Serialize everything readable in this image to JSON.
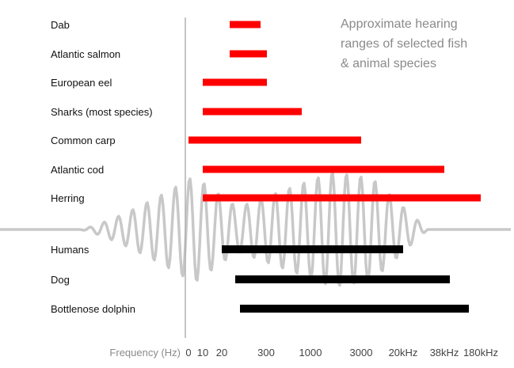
{
  "chart_data": {
    "type": "bar",
    "orientation": "horizontal",
    "title_lines": [
      "Approximate hearing",
      "ranges of selected fish",
      "& animal species"
    ],
    "xlabel": "Frequency (Hz)",
    "x_ticks": [
      "0",
      "10",
      "20",
      "300",
      "1000",
      "3000",
      "20kHz",
      "38kHz",
      "180kHz"
    ],
    "colors": {
      "fish": "#ff0000",
      "mammal": "#000000",
      "wave": "#c8c8c8",
      "axis": "#b0b0b0"
    },
    "series": [
      {
        "group": "fish",
        "items": [
          {
            "label": "Dab",
            "range": [
              "30",
              "250"
            ]
          },
          {
            "label": "Atlantic salmon",
            "range": [
              "30",
              "380"
            ]
          },
          {
            "label": "European eel",
            "range": [
              "10",
              "380"
            ]
          },
          {
            "label": "Sharks (most species)",
            "range": [
              "10",
              "800"
            ]
          },
          {
            "label": "Common carp",
            "range": [
              "0",
              "3000"
            ]
          },
          {
            "label": "Atlantic cod",
            "range": [
              "10",
              "38kHz"
            ]
          },
          {
            "label": "Herring",
            "range": [
              "10",
              "180kHz"
            ]
          }
        ]
      },
      {
        "group": "mammal",
        "items": [
          {
            "label": "Humans",
            "range": [
              "20",
              "20kHz"
            ]
          },
          {
            "label": "Dog",
            "range": [
              "50",
              "45kHz"
            ]
          },
          {
            "label": "Bottlenose dolphin",
            "range": [
              "70",
              "150kHz"
            ]
          }
        ]
      }
    ]
  }
}
